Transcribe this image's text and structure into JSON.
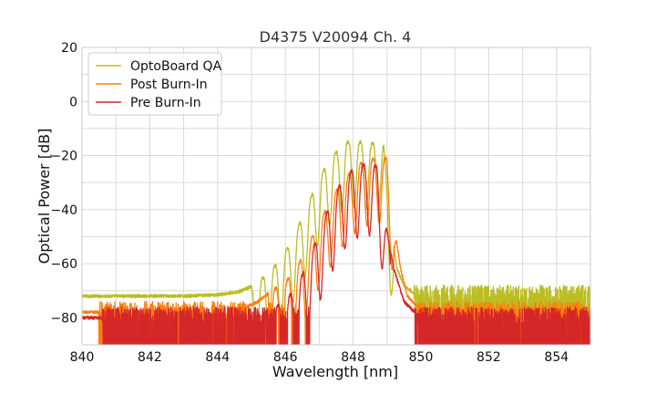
{
  "chart_data": {
    "type": "line",
    "title": "D4375 V20094 Ch. 4",
    "xlabel": "Wavelength [nm]",
    "ylabel": "Optical Power [dB]",
    "xlim": [
      840,
      855
    ],
    "ylim": [
      -90,
      20
    ],
    "x_ticks": [
      "840",
      "842",
      "844",
      "846",
      "848",
      "850",
      "852",
      "854"
    ],
    "y_ticks": [
      "20",
      "0",
      "−20",
      "−40",
      "−60",
      "−80"
    ],
    "grid": true,
    "legend_position": "top-left",
    "series": [
      {
        "name": "OptoBoard QA",
        "color": "#bcbd22",
        "noise_floor_db": -72,
        "envelope": [
          [
            840.0,
            -72
          ],
          [
            843.0,
            -72
          ],
          [
            844.0,
            -71.5
          ],
          [
            844.6,
            -70.5
          ],
          [
            845.0,
            -68.5
          ],
          [
            845.4,
            -64.5
          ],
          [
            845.8,
            -59.5
          ],
          [
            846.2,
            -51.5
          ],
          [
            846.6,
            -40
          ],
          [
            847.0,
            -28
          ],
          [
            847.4,
            -20
          ],
          [
            847.8,
            -15
          ],
          [
            848.2,
            -15
          ],
          [
            848.6,
            -15.5
          ],
          [
            848.9,
            -16
          ],
          [
            849.1,
            -46
          ],
          [
            849.3,
            -62
          ],
          [
            849.5,
            -68
          ],
          [
            849.8,
            -71
          ],
          [
            850.2,
            -72
          ],
          [
            855.0,
            -72
          ]
        ],
        "fringe_period_nm": 0.36,
        "fringe_depth_db": 24,
        "fringe_peak_nm": 847.85,
        "fringe_start_nm": 845.0,
        "fringe_end_nm": 849.2,
        "noise_start_nm": 849.8,
        "noise_end_nm": 855.0
      },
      {
        "name": "Post Burn-In",
        "color": "#ff7f0e",
        "noise_floor_db": -78,
        "envelope": [
          [
            840.0,
            -78
          ],
          [
            844.5,
            -78
          ],
          [
            845.2,
            -74
          ],
          [
            845.6,
            -70
          ],
          [
            846.0,
            -67
          ],
          [
            846.4,
            -60
          ],
          [
            846.8,
            -50
          ],
          [
            847.2,
            -40
          ],
          [
            847.6,
            -31
          ],
          [
            848.0,
            -25
          ],
          [
            848.4,
            -21.5
          ],
          [
            848.8,
            -21
          ],
          [
            849.0,
            -21
          ],
          [
            849.2,
            -45
          ],
          [
            849.4,
            -62
          ],
          [
            849.6,
            -72
          ],
          [
            849.9,
            -76
          ],
          [
            850.2,
            -78
          ],
          [
            855.0,
            -78
          ]
        ],
        "fringe_period_nm": 0.36,
        "fringe_depth_db": 24,
        "fringe_peak_nm": 848.95,
        "fringe_start_nm": 845.5,
        "fringe_end_nm": 849.3,
        "noise_start_nm": 840.5,
        "noise_end_nm": 855.0
      },
      {
        "name": "Pre Burn-In",
        "color": "#d62728",
        "noise_floor_db": -80,
        "envelope": [
          [
            840.0,
            -80
          ],
          [
            844.5,
            -80
          ],
          [
            845.4,
            -78
          ],
          [
            846.0,
            -74
          ],
          [
            846.4,
            -67
          ],
          [
            846.8,
            -55
          ],
          [
            847.2,
            -42
          ],
          [
            847.6,
            -31
          ],
          [
            848.0,
            -25
          ],
          [
            848.4,
            -23
          ],
          [
            848.7,
            -24
          ],
          [
            849.0,
            -48
          ],
          [
            849.2,
            -62
          ],
          [
            849.5,
            -74
          ],
          [
            849.9,
            -79
          ],
          [
            850.2,
            -80
          ],
          [
            855.0,
            -80
          ]
        ],
        "fringe_period_nm": 0.36,
        "fringe_depth_db": 26,
        "fringe_peak_nm": 848.3,
        "fringe_start_nm": 845.4,
        "fringe_end_nm": 849.1,
        "noise_start_nm": 840.6,
        "noise_end_nm": 855.0
      }
    ]
  }
}
